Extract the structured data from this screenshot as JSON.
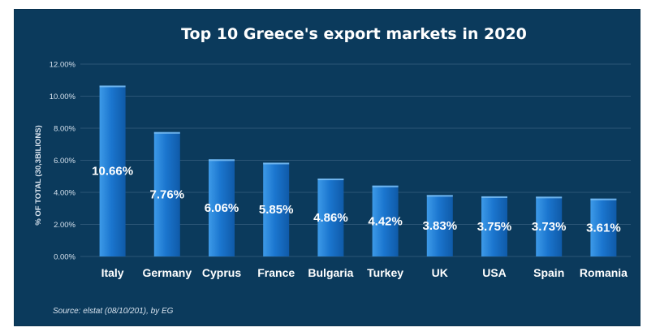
{
  "chart_data": {
    "type": "bar",
    "title": "Top 10 Greece's export markets in 2020",
    "ylabel": "% OF TOTAL (30,3BILIONS)",
    "xlabel": "",
    "categories": [
      "Italy",
      "Germany",
      "Cyprus",
      "France",
      "Bulgaria",
      "Turkey",
      "UK",
      "USA",
      "Spain",
      "Romania"
    ],
    "values": [
      10.66,
      7.76,
      6.06,
      5.85,
      4.86,
      4.42,
      3.83,
      3.75,
      3.73,
      3.61
    ],
    "data_labels": [
      "10.66%",
      "7.76%",
      "6.06%",
      "5.85%",
      "4.86%",
      "4.42%",
      "3.83%",
      "3.75%",
      "3.73%",
      "3.61%"
    ],
    "y_ticks": [
      0,
      2,
      4,
      6,
      8,
      10,
      12
    ],
    "y_tick_labels": [
      "0.00%",
      "2.00%",
      "4.00%",
      "6.00%",
      "8.00%",
      "10.00%",
      "12.00%"
    ],
    "ylim": [
      0,
      12
    ],
    "grid": true,
    "legend": "none",
    "source": "Source: elstat (08/10/201), by EG",
    "colors": {
      "background": "#0b3a5c",
      "bar_light": "#3d9ae8",
      "bar_mid": "#1b76cf",
      "bar_dark": "#0f5aa8",
      "gridline": "#2b5576",
      "text": "#ffffff"
    }
  }
}
